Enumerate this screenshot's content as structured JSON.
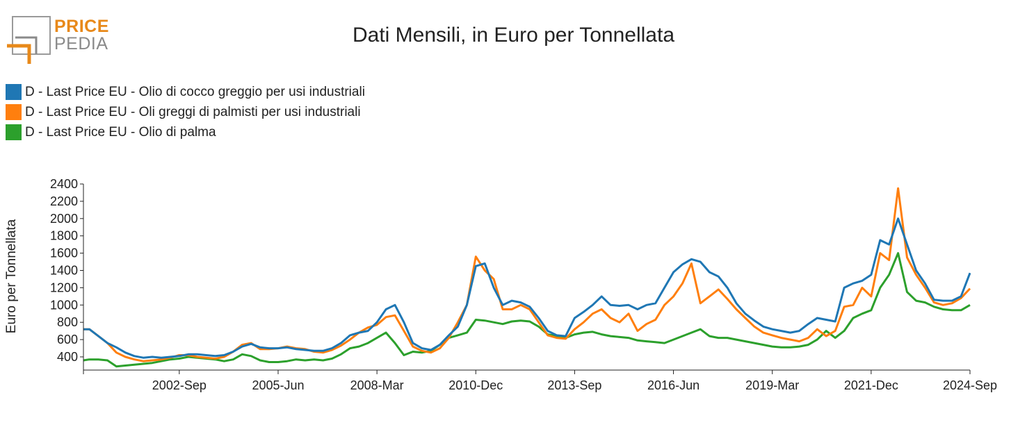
{
  "logo": {
    "line1": "PRICE",
    "line2": "PEDIA",
    "colors": {
      "orange": "#e8891a",
      "gray": "#8a8a8a"
    }
  },
  "chart_data": {
    "type": "line",
    "title": "Dati Mensili, in Euro per Tonnellata",
    "ylabel": "Euro per Tonnellata",
    "xlabel": "",
    "ylim": [
      250,
      2400
    ],
    "yticks": [
      400,
      600,
      800,
      1000,
      1200,
      1400,
      1600,
      1800,
      2000,
      2200,
      2400
    ],
    "xlim": [
      "2000-01",
      "2024-09"
    ],
    "xticks": [
      "2002-Sep",
      "2005-Jun",
      "2008-Mar",
      "2010-Dec",
      "2013-Sep",
      "2016-Jun",
      "2019-Mar",
      "2021-Dec",
      "2024-Sep"
    ],
    "legend_position": "top-left",
    "grid": false,
    "x": [
      "2000-01",
      "2000-03",
      "2000-06",
      "2000-09",
      "2000-12",
      "2001-03",
      "2001-06",
      "2001-09",
      "2001-12",
      "2002-03",
      "2002-06",
      "2002-09",
      "2002-12",
      "2003-03",
      "2003-06",
      "2003-09",
      "2003-12",
      "2004-03",
      "2004-06",
      "2004-09",
      "2004-12",
      "2005-03",
      "2005-06",
      "2005-09",
      "2005-12",
      "2006-03",
      "2006-06",
      "2006-09",
      "2006-12",
      "2007-03",
      "2007-06",
      "2007-09",
      "2007-12",
      "2008-03",
      "2008-06",
      "2008-09",
      "2008-12",
      "2009-03",
      "2009-06",
      "2009-09",
      "2009-12",
      "2010-03",
      "2010-06",
      "2010-09",
      "2010-12",
      "2011-03",
      "2011-06",
      "2011-09",
      "2011-12",
      "2012-03",
      "2012-06",
      "2012-09",
      "2012-12",
      "2013-03",
      "2013-06",
      "2013-09",
      "2013-12",
      "2014-03",
      "2014-06",
      "2014-09",
      "2014-12",
      "2015-03",
      "2015-06",
      "2015-09",
      "2015-12",
      "2016-03",
      "2016-06",
      "2016-09",
      "2016-12",
      "2017-03",
      "2017-06",
      "2017-09",
      "2017-12",
      "2018-03",
      "2018-06",
      "2018-09",
      "2018-12",
      "2019-03",
      "2019-06",
      "2019-09",
      "2019-12",
      "2020-03",
      "2020-06",
      "2020-09",
      "2020-12",
      "2021-03",
      "2021-06",
      "2021-09",
      "2021-12",
      "2022-03",
      "2022-06",
      "2022-09",
      "2022-12",
      "2023-03",
      "2023-06",
      "2023-09",
      "2023-12",
      "2024-03",
      "2024-06",
      "2024-09"
    ],
    "series": [
      {
        "name": "D - Last Price EU - Olio di cocco greggio per usi industriali",
        "color": "#1f77b4",
        "values": [
          720,
          720,
          640,
          560,
          510,
          450,
          410,
          390,
          400,
          390,
          400,
          410,
          430,
          430,
          420,
          410,
          420,
          460,
          520,
          550,
          510,
          500,
          500,
          510,
          490,
          480,
          470,
          470,
          500,
          560,
          650,
          680,
          700,
          800,
          950,
          1000,
          800,
          560,
          500,
          480,
          540,
          650,
          750,
          1000,
          1450,
          1480,
          1200,
          1000,
          1050,
          1030,
          980,
          850,
          700,
          650,
          640,
          850,
          920,
          1000,
          1100,
          1000,
          990,
          1000,
          950,
          1000,
          1020,
          1200,
          1380,
          1470,
          1530,
          1500,
          1380,
          1330,
          1200,
          1020,
          900,
          820,
          750,
          720,
          700,
          680,
          700,
          780,
          850,
          830,
          810,
          1200,
          1250,
          1280,
          1350,
          1750,
          1700,
          2000,
          1700,
          1400,
          1250,
          1060,
          1050,
          1050,
          1100,
          1370
        ]
      },
      {
        "name": "D - Last Price EU - Oli greggi di palmisti per usi industriali",
        "color": "#ff7f0e",
        "values": [
          720,
          720,
          640,
          560,
          450,
          400,
          370,
          350,
          360,
          370,
          390,
          420,
          420,
          400,
          390,
          380,
          400,
          460,
          540,
          560,
          490,
          490,
          500,
          520,
          500,
          490,
          460,
          450,
          480,
          530,
          600,
          680,
          740,
          770,
          860,
          880,
          700,
          520,
          470,
          450,
          500,
          620,
          800,
          1000,
          1560,
          1400,
          1300,
          950,
          950,
          1000,
          950,
          800,
          650,
          620,
          610,
          720,
          800,
          900,
          950,
          850,
          800,
          900,
          700,
          780,
          830,
          1000,
          1100,
          1250,
          1480,
          1020,
          1100,
          1180,
          1070,
          950,
          850,
          750,
          680,
          650,
          620,
          600,
          580,
          620,
          720,
          640,
          700,
          980,
          1000,
          1200,
          1100,
          1600,
          1520,
          2350,
          1550,
          1350,
          1200,
          1030,
          1000,
          1020,
          1080,
          1190
        ]
      },
      {
        "name": "D - Last Price EU - Olio di palma",
        "color": "#2ca02c",
        "values": [
          360,
          370,
          370,
          360,
          290,
          300,
          310,
          320,
          330,
          350,
          370,
          380,
          400,
          390,
          380,
          370,
          350,
          370,
          430,
          410,
          360,
          340,
          340,
          350,
          370,
          360,
          370,
          360,
          380,
          430,
          500,
          520,
          560,
          620,
          680,
          560,
          420,
          460,
          450,
          470,
          540,
          620,
          650,
          680,
          830,
          820,
          800,
          780,
          810,
          820,
          810,
          750,
          660,
          640,
          620,
          660,
          680,
          690,
          660,
          640,
          630,
          620,
          590,
          580,
          570,
          560,
          600,
          640,
          680,
          720,
          640,
          620,
          620,
          600,
          580,
          560,
          540,
          520,
          510,
          510,
          520,
          540,
          600,
          700,
          620,
          700,
          850,
          900,
          940,
          1200,
          1350,
          1600,
          1150,
          1050,
          1030,
          980,
          950,
          940,
          940,
          1000
        ]
      }
    ]
  }
}
